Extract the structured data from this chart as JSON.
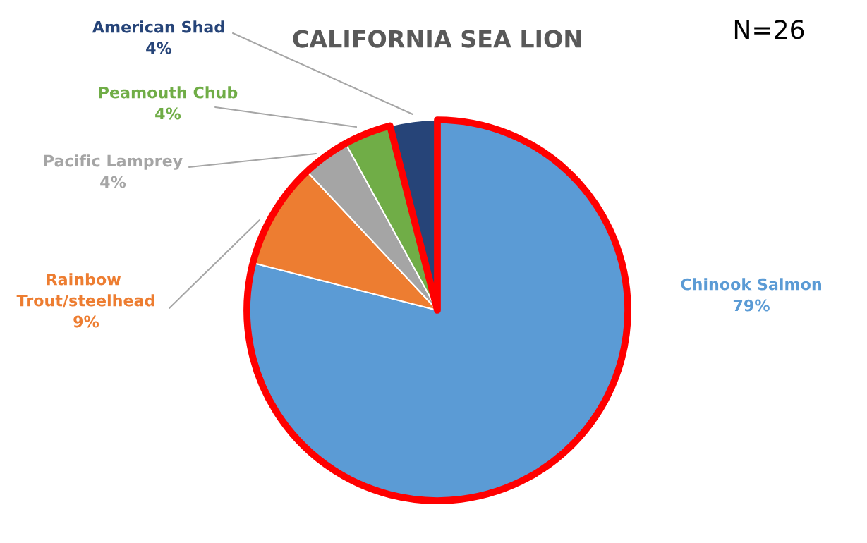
{
  "chart_data": {
    "type": "pie",
    "title": "CALIFORNIA SEA LION",
    "categories": [
      "Chinook Salmon",
      "Rainbow Trout/steelhead",
      "Pacific Lamprey",
      "Peamouth Chub",
      "American Shad"
    ],
    "values": [
      79,
      9,
      4,
      4,
      4
    ],
    "colors": [
      "#5b9bd5",
      "#ed7d31",
      "#a5a5a5",
      "#70ad47",
      "#264478"
    ],
    "value_labels": [
      "79%",
      "9%",
      "4%",
      "4%",
      "4%"
    ],
    "annotations": [
      "N=26"
    ]
  }
}
